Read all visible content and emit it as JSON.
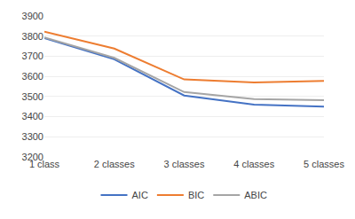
{
  "chart_data": {
    "type": "line",
    "categories": [
      "1 class",
      "2 classes",
      "3 classes",
      "4 classes",
      "5 classes"
    ],
    "series": [
      {
        "name": "AIC",
        "color": "#4472C4",
        "values": [
          3790,
          3685,
          3505,
          3460,
          3450
        ]
      },
      {
        "name": "BIC",
        "color": "#ED7D31",
        "values": [
          3822,
          3738,
          3585,
          3570,
          3578
        ]
      },
      {
        "name": "ABIC",
        "color": "#A5A5A5",
        "values": [
          3793,
          3692,
          3522,
          3487,
          3482
        ]
      }
    ],
    "ylim": [
      3200,
      3900
    ],
    "yticks": [
      3200,
      3300,
      3400,
      3500,
      3600,
      3700,
      3800,
      3900
    ],
    "grid": true,
    "legend": "bottom"
  }
}
